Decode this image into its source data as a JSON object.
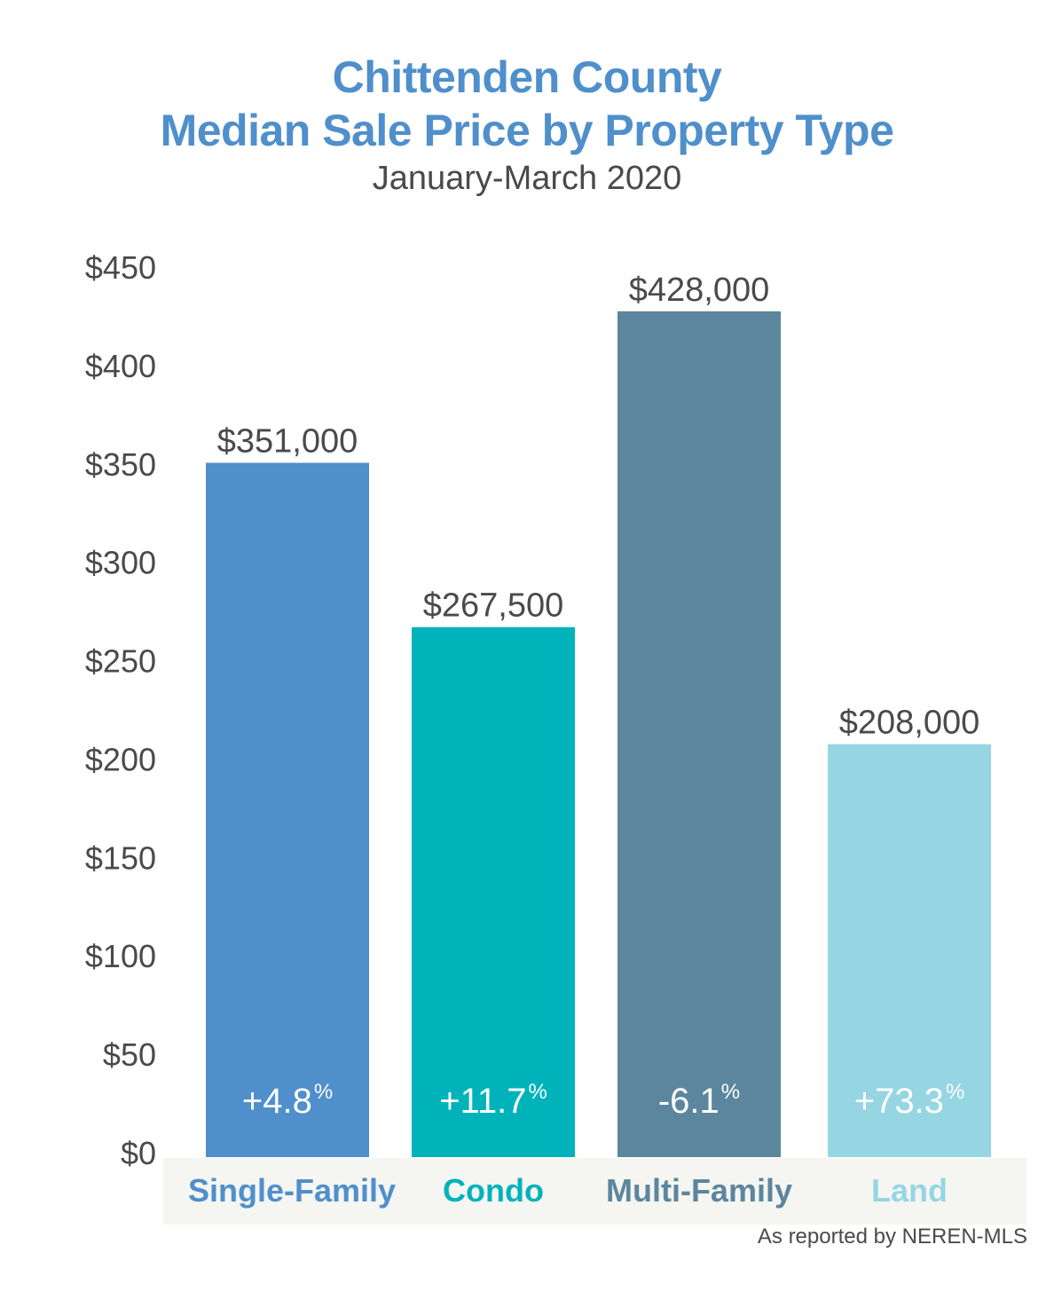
{
  "chart_data": {
    "type": "bar",
    "title": "Chittenden County",
    "title_line2": "Median Sale Price by Property Type",
    "subtitle": "January-March 2020",
    "categories": [
      "Single-Family",
      "Condo",
      "Multi-Family",
      "Land"
    ],
    "values": [
      351000,
      267500,
      428000,
      208000
    ],
    "value_labels": [
      "$351,000",
      "$267,500",
      "$428,000",
      "$208,000"
    ],
    "change_labels": [
      "+4.8",
      "+11.7",
      "-6.1",
      "+73.3"
    ],
    "change_unit": "%",
    "colors": [
      "#4f8fcb",
      "#00b3bb",
      "#5c869d",
      "#95d6e2"
    ],
    "y_ticks": [
      "$0",
      "$50",
      "$100",
      "$150",
      "$200",
      "$250",
      "$300",
      "$350",
      "$400",
      "$450"
    ],
    "y_unit_scale": 1000,
    "ylim": [
      0,
      450000
    ],
    "xlabel": "",
    "ylabel": "",
    "grid": false,
    "legend": "none",
    "source": "As reported by NEREN-MLS"
  },
  "theme": {
    "title_color": "#4f8fcb",
    "text_color": "#4a4a4a",
    "category_band_color": "#f5f5f2"
  }
}
